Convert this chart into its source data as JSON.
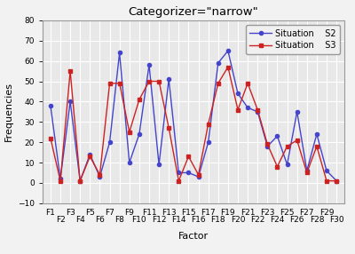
{
  "title": "Categorizer=\"narrow\"",
  "xlabel": "Factor",
  "ylabel": "Frequencies",
  "ylim": [
    -10,
    80
  ],
  "yticks": [
    -10,
    0,
    10,
    20,
    30,
    40,
    50,
    60,
    70,
    80
  ],
  "factors": [
    "F1",
    "F2",
    "F3",
    "F4",
    "F5",
    "F6",
    "F7",
    "F8",
    "F9",
    "F10",
    "F11",
    "F12",
    "F13",
    "F14",
    "F15",
    "F16",
    "F17",
    "F18",
    "F19",
    "F20",
    "F21",
    "F22",
    "F23",
    "F24",
    "F25",
    "F26",
    "F27",
    "F28",
    "F29",
    "F30"
  ],
  "s2_values": [
    38,
    2,
    40,
    1,
    14,
    3,
    20,
    64,
    10,
    24,
    58,
    9,
    51,
    5,
    5,
    3,
    20,
    59,
    65,
    44,
    37,
    35,
    18,
    23,
    9,
    35,
    6,
    24,
    6,
    1
  ],
  "s3_values": [
    22,
    1,
    55,
    1,
    13,
    4,
    49,
    49,
    25,
    41,
    50,
    50,
    27,
    1,
    13,
    4,
    29,
    49,
    57,
    36,
    49,
    36,
    19,
    8,
    18,
    21,
    5,
    18,
    1,
    1
  ],
  "s2_color": "#4444cc",
  "s3_color": "#cc2222",
  "s2_marker": "o",
  "s3_marker": "s",
  "s2_label": "Situation    S2",
  "s3_label": "Situation    S3",
  "bg_color": "#e8e8e8",
  "fig_color": "#f2f2f2",
  "grid_color": "#ffffff",
  "title_fontsize": 9.5,
  "axis_fontsize": 8,
  "tick_fontsize": 6.5,
  "legend_fontsize": 7
}
